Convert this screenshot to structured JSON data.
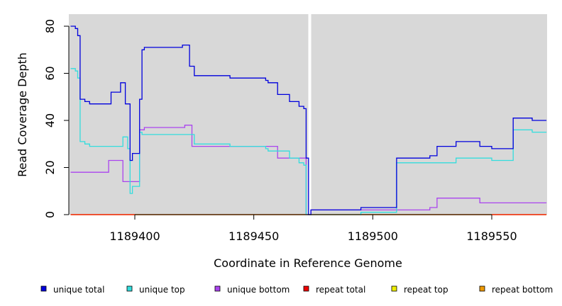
{
  "chart_data": {
    "type": "line",
    "step": true,
    "xlabel": "Coordinate in Reference Genome",
    "ylabel": "Read Coverage Depth",
    "xlim": [
      1189373,
      1189573
    ],
    "ylim": [
      0,
      85
    ],
    "x_ticks": [
      1189400,
      1189450,
      1189500,
      1189550
    ],
    "x_tick_labels": [
      "1189400",
      "1189450",
      "1189500",
      "1189550"
    ],
    "y_ticks": [
      0,
      20,
      40,
      60,
      80
    ],
    "y_tick_labels": [
      "0",
      "20",
      "40",
      "60",
      "80"
    ],
    "background_color": "#d8d8d8",
    "gap_marker_x": 1189473.5,
    "legend_position": "bottom",
    "series": [
      {
        "name": "unique total",
        "color": "#0000dd",
        "points": [
          [
            1189373,
            80
          ],
          [
            1189375,
            79
          ],
          [
            1189376,
            76
          ],
          [
            1189377,
            49
          ],
          [
            1189379,
            48
          ],
          [
            1189381,
            47
          ],
          [
            1189390,
            52
          ],
          [
            1189394,
            56
          ],
          [
            1189396,
            47
          ],
          [
            1189398,
            23
          ],
          [
            1189399,
            26
          ],
          [
            1189402,
            49
          ],
          [
            1189403,
            70
          ],
          [
            1189404,
            71
          ],
          [
            1189420,
            72
          ],
          [
            1189423,
            63
          ],
          [
            1189425,
            59
          ],
          [
            1189440,
            58
          ],
          [
            1189455,
            57
          ],
          [
            1189456,
            56
          ],
          [
            1189460,
            51
          ],
          [
            1189465,
            48
          ],
          [
            1189469,
            46
          ],
          [
            1189471,
            45
          ],
          [
            1189472,
            24
          ],
          [
            1189473,
            0
          ],
          [
            1189474,
            2
          ],
          [
            1189495,
            3
          ],
          [
            1189510,
            24
          ],
          [
            1189524,
            25
          ],
          [
            1189527,
            29
          ],
          [
            1189535,
            31
          ],
          [
            1189545,
            29
          ],
          [
            1189550,
            28
          ],
          [
            1189559,
            41
          ],
          [
            1189567,
            40
          ],
          [
            1189573,
            40
          ]
        ]
      },
      {
        "name": "unique top",
        "color": "#33dddd",
        "points": [
          [
            1189373,
            62
          ],
          [
            1189375,
            61
          ],
          [
            1189376,
            58
          ],
          [
            1189377,
            31
          ],
          [
            1189379,
            30
          ],
          [
            1189381,
            29
          ],
          [
            1189395,
            33
          ],
          [
            1189397,
            28
          ],
          [
            1189398,
            9
          ],
          [
            1189399,
            12
          ],
          [
            1189402,
            35
          ],
          [
            1189403,
            34
          ],
          [
            1189425,
            30
          ],
          [
            1189440,
            29
          ],
          [
            1189455,
            28
          ],
          [
            1189456,
            27
          ],
          [
            1189460,
            27
          ],
          [
            1189465,
            24
          ],
          [
            1189469,
            22
          ],
          [
            1189471,
            21
          ],
          [
            1189472,
            0
          ],
          [
            1189474,
            0
          ],
          [
            1189495,
            1
          ],
          [
            1189510,
            22
          ],
          [
            1189535,
            24
          ],
          [
            1189550,
            23
          ],
          [
            1189559,
            36
          ],
          [
            1189567,
            35
          ],
          [
            1189573,
            35
          ]
        ]
      },
      {
        "name": "unique bottom",
        "color": "#aa44ee",
        "points": [
          [
            1189373,
            18
          ],
          [
            1189389,
            23
          ],
          [
            1189395,
            14
          ],
          [
            1189402,
            36
          ],
          [
            1189404,
            37
          ],
          [
            1189421,
            38
          ],
          [
            1189424,
            29
          ],
          [
            1189460,
            24
          ],
          [
            1189472,
            0
          ],
          [
            1189474,
            2
          ],
          [
            1189524,
            3
          ],
          [
            1189527,
            7
          ],
          [
            1189545,
            5
          ],
          [
            1189573,
            5
          ]
        ]
      },
      {
        "name": "repeat total",
        "color": "#ee0000",
        "points": [
          [
            1189373,
            0
          ],
          [
            1189573,
            0
          ]
        ]
      },
      {
        "name": "repeat top",
        "color": "#eeee00",
        "points": [
          [
            1189373,
            0
          ],
          [
            1189573,
            0
          ]
        ]
      },
      {
        "name": "repeat bottom",
        "color": "#ee9900",
        "points": [
          [
            1189373,
            0
          ],
          [
            1189573,
            0
          ]
        ]
      }
    ]
  }
}
